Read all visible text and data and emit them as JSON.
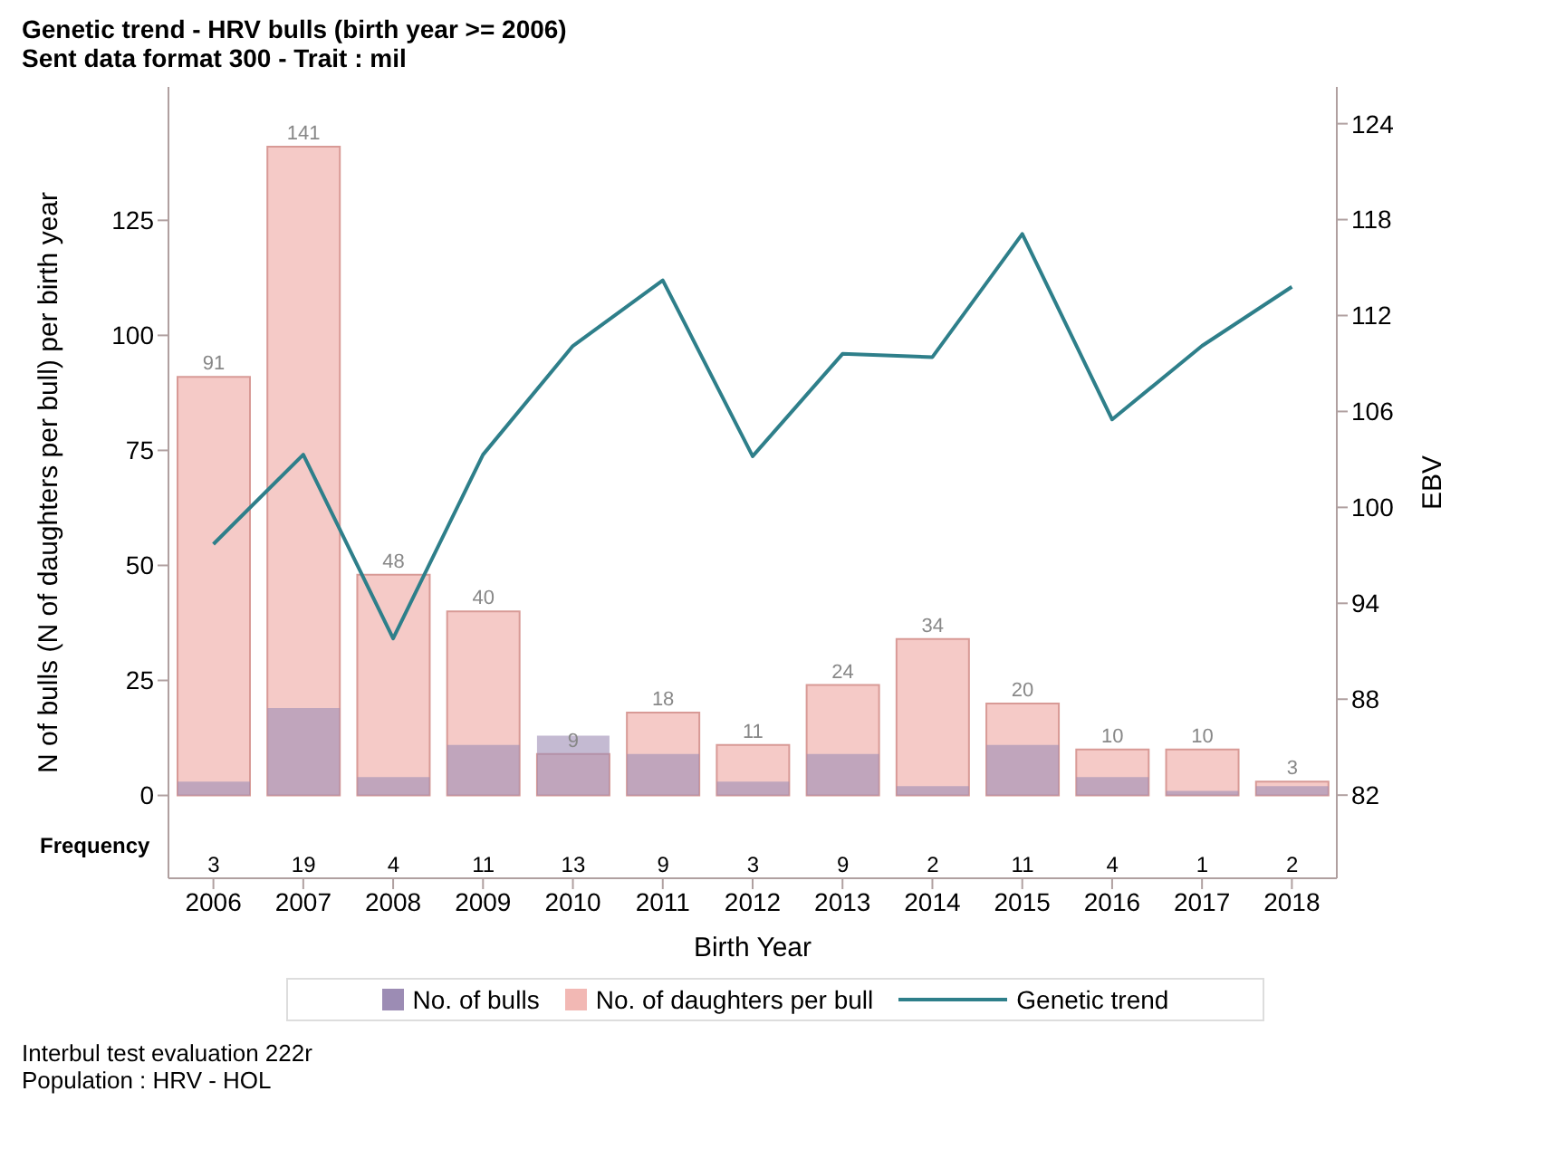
{
  "chart_data": {
    "type": "bar",
    "title": "Genetic trend - HRV bulls (birth year >= 2006)",
    "subtitle": "Sent data format 300 - Trait : mil",
    "xlabel": "Birth Year",
    "ylabel": "N of bulls (N of daughters per bull) per birth year",
    "y2label": "EBV",
    "categories": [
      "2006",
      "2007",
      "2008",
      "2009",
      "2010",
      "2011",
      "2012",
      "2013",
      "2014",
      "2015",
      "2016",
      "2017",
      "2018"
    ],
    "series": [
      {
        "name": "No. of bulls",
        "color": "#9c8cb4",
        "values": [
          3,
          19,
          4,
          11,
          13,
          9,
          3,
          9,
          2,
          11,
          4,
          1,
          2
        ],
        "value_labels": [
          "3",
          "19",
          "4",
          "11",
          "13",
          "9",
          "3",
          "9",
          "2",
          "11",
          "4",
          "1",
          "2"
        ]
      },
      {
        "name": "No. of daughters per bull",
        "color": "#f2b8b4",
        "values": [
          91,
          141,
          48,
          40,
          9,
          18,
          11,
          24,
          34,
          20,
          10,
          10,
          3
        ],
        "value_labels": [
          "91",
          "141",
          "48",
          "40",
          "9",
          "18",
          "11",
          "24",
          "34",
          "20",
          "10",
          "10",
          "3"
        ]
      },
      {
        "name": "Genetic trend",
        "type": "line",
        "axis": "y2",
        "color": "#2e7f8a",
        "values": [
          97.7,
          103.3,
          91.8,
          103.3,
          110.1,
          114.2,
          103.2,
          109.6,
          109.4,
          117.1,
          105.5,
          110.1,
          113.8
        ]
      }
    ],
    "ylim": [
      -18,
      154
    ],
    "yticks": [
      0,
      25,
      50,
      75,
      100,
      125
    ],
    "y2lim": [
      76.8,
      126.3
    ],
    "y2ticks": [
      82,
      88,
      94,
      100,
      106,
      112,
      118,
      124
    ],
    "legend": "bottom",
    "grid": false,
    "marker": "none",
    "annotations": [
      "Frequency",
      "Interbul test evaluation 222r",
      "Population : HRV - HOL"
    ]
  }
}
